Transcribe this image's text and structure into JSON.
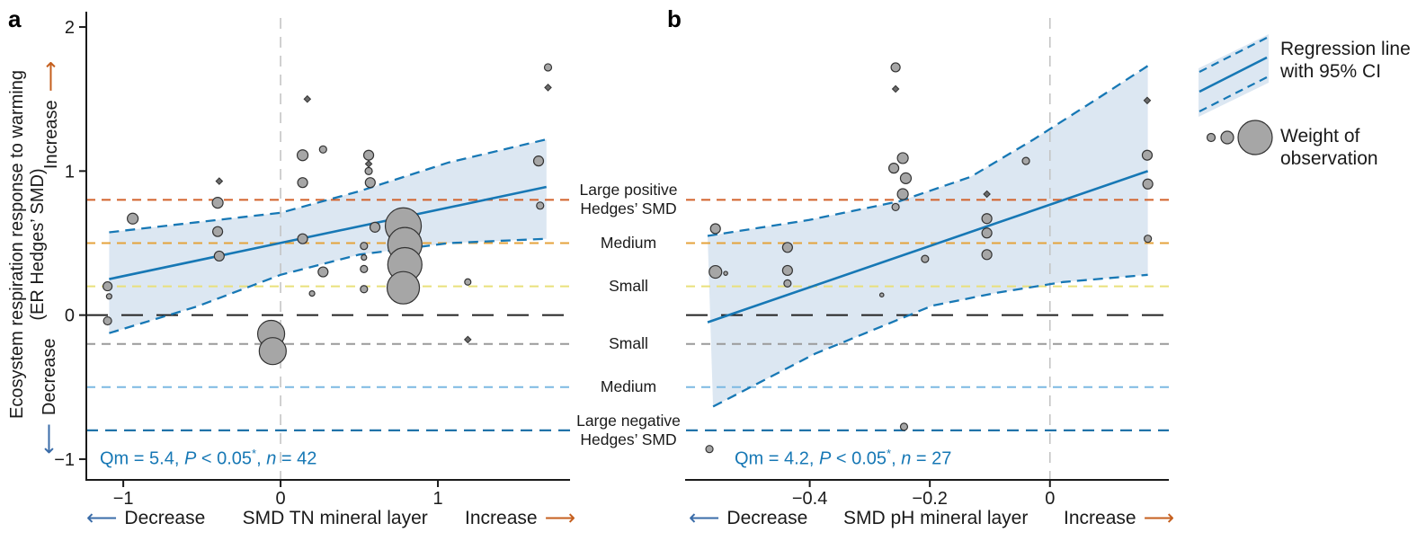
{
  "figure": {
    "panel_a_label": "a",
    "panel_b_label": "b",
    "y_axis_title_line1": "Ecosystem respiration response to warming",
    "y_axis_title_line2": "(ER Hedges’ SMD)",
    "y_increase_label": "Increase",
    "y_decrease_label": "Decrease",
    "icons": {
      "left_arrow": "⟵",
      "right_arrow": "⟶"
    },
    "legend": {
      "regression_line1": "Regression line",
      "regression_line2": "with 95% CI",
      "weight_line1": "Weight of",
      "weight_line2": "observation"
    }
  },
  "style": {
    "blue": "#1778b5",
    "ci_fill": "#dce7f2",
    "vline": "#c4c4c4",
    "axis": "#1a1a1a",
    "point_fill": "#a6a6a6",
    "stats_color": "#1778b5",
    "increase_arrow_color": "#c55f1e",
    "decrease_arrow_color": "#3a6ca8"
  },
  "chart_data": {
    "type": "scatter",
    "y_range": [
      -1.144,
      2.094
    ],
    "y_ticks": [
      {
        "v": 2,
        "label": "2"
      },
      {
        "v": 1,
        "label": "1"
      },
      {
        "v": 0,
        "label": "0"
      },
      {
        "v": -1,
        "label": "−1"
      }
    ],
    "ref_lines": [
      {
        "y": 0.8,
        "color": "#d2622b",
        "dash": "10 7",
        "width": 2,
        "label_lines": [
          "Large positive",
          "Hedges’ SMD"
        ]
      },
      {
        "y": 0.5,
        "color": "#e4a33c",
        "dash": "10 7",
        "width": 2,
        "label_lines": [
          "Medium"
        ]
      },
      {
        "y": 0.2,
        "color": "#e9e07b",
        "dash": "10 7",
        "width": 2,
        "label_lines": [
          "Small"
        ]
      },
      {
        "y": 0,
        "color": "#222222",
        "dash": "24 15",
        "width": 2,
        "label_lines": []
      },
      {
        "y": -0.2,
        "color": "#9a9a9a",
        "dash": "10 7",
        "width": 2,
        "label_lines": [
          "Small"
        ]
      },
      {
        "y": -0.5,
        "color": "#7cb9e2",
        "dash": "10 7",
        "width": 2,
        "label_lines": [
          "Medium"
        ]
      },
      {
        "y": -0.8,
        "color": "#2173a9",
        "dash": "13 8",
        "width": 2.3,
        "label_lines": [
          "Large negative",
          "Hedges’ SMD"
        ]
      }
    ],
    "panels": [
      {
        "id": "a",
        "x_label": "SMD TN mineral layer",
        "x_decrease": "Decrease",
        "x_increase": "Increase",
        "x_range": [
          -1.235,
          1.84
        ],
        "x_ticks": [
          {
            "v": -1,
            "label": "−1"
          },
          {
            "v": 0,
            "label": "0"
          },
          {
            "v": 1,
            "label": "1"
          }
        ],
        "stats": {
          "qm": "Qm = 5.4, ",
          "p": "P",
          "p2": " < 0.05",
          "star": "*",
          "sep": ", ",
          "n": "n",
          "n2": " = 42"
        },
        "regression": {
          "x1": -1.09,
          "y1": 0.25,
          "x2": 1.69,
          "y2": 0.89
        },
        "ci_upper": [
          [
            -1.09,
            0.575
          ],
          [
            -0.53,
            0.645
          ],
          [
            0,
            0.71
          ],
          [
            0.5,
            0.86
          ],
          [
            1.07,
            1.06
          ],
          [
            1.69,
            1.22
          ]
        ],
        "ci_lower": [
          [
            -1.09,
            -0.125
          ],
          [
            -0.53,
            0.06
          ],
          [
            0,
            0.28
          ],
          [
            0.5,
            0.42
          ],
          [
            1.07,
            0.5
          ],
          [
            1.69,
            0.53
          ]
        ],
        "points": [
          [
            -1.1,
            0.2,
            5
          ],
          [
            -1.09,
            0.13,
            3
          ],
          [
            -1.1,
            -0.04,
            4.5
          ],
          [
            -0.94,
            0.67,
            6
          ],
          [
            -0.4,
            0.78,
            6
          ],
          [
            -0.39,
            0.93,
            2.2,
            "d"
          ],
          [
            -0.4,
            0.58,
            5.5
          ],
          [
            -0.39,
            0.41,
            5.5
          ],
          [
            0.17,
            1.5,
            2.2,
            "d"
          ],
          [
            0.14,
            1.11,
            6
          ],
          [
            0.27,
            1.15,
            4
          ],
          [
            0.14,
            0.92,
            5.5
          ],
          [
            0.14,
            0.53,
            5.5
          ],
          [
            0.27,
            0.3,
            5.5
          ],
          [
            0.2,
            0.15,
            3
          ],
          [
            0.56,
            1.11,
            5.5
          ],
          [
            0.56,
            1.05,
            2.2,
            "d"
          ],
          [
            0.56,
            1.0,
            4
          ],
          [
            0.57,
            0.92,
            5.5
          ],
          [
            0.6,
            0.61,
            5.5
          ],
          [
            0.53,
            0.48,
            4
          ],
          [
            0.53,
            0.4,
            3
          ],
          [
            0.53,
            0.32,
            4
          ],
          [
            0.53,
            0.18,
            4
          ],
          [
            0.78,
            0.62,
            20
          ],
          [
            0.79,
            0.49,
            19
          ],
          [
            0.79,
            0.35,
            19
          ],
          [
            0.78,
            0.19,
            18
          ],
          [
            -0.06,
            -0.13,
            15
          ],
          [
            -0.05,
            -0.25,
            15
          ],
          [
            1.19,
            0.23,
            3.5
          ],
          [
            1.19,
            -0.17,
            2.2,
            "d"
          ],
          [
            1.64,
            1.07,
            5.5
          ],
          [
            1.65,
            0.76,
            4
          ],
          [
            1.7,
            1.72,
            4
          ],
          [
            1.7,
            1.58,
            2.2,
            "d"
          ]
        ]
      },
      {
        "id": "b",
        "x_label": "SMD pH mineral layer",
        "x_decrease": "Decrease",
        "x_increase": "Increase",
        "x_range": [
          -0.606,
          0.198
        ],
        "x_ticks": [
          {
            "v": -0.4,
            "label": "−0.4"
          },
          {
            "v": -0.2,
            "label": "−0.2"
          },
          {
            "v": 0,
            "label": "0"
          }
        ],
        "stats": {
          "qm": "Qm = 4.2, ",
          "p": "P",
          "p2": " < 0.05",
          "star": "*",
          "sep": ", ",
          "n": "n",
          "n2": " = 27"
        },
        "regression": {
          "x1": -0.57,
          "y1": -0.05,
          "x2": 0.163,
          "y2": 1.0
        },
        "ci_upper": [
          [
            -0.57,
            0.55
          ],
          [
            -0.401,
            0.66
          ],
          [
            -0.251,
            0.79
          ],
          [
            -0.132,
            0.96
          ],
          [
            -0.027,
            1.22
          ],
          [
            0.078,
            1.5
          ],
          [
            0.163,
            1.73
          ]
        ],
        "ci_lower": [
          [
            -0.561,
            -0.635
          ],
          [
            -0.391,
            -0.268
          ],
          [
            -0.196,
            0.065
          ],
          [
            -0.087,
            0.156
          ],
          [
            0.022,
            0.23
          ],
          [
            0.163,
            0.28
          ]
        ],
        "points": [
          [
            -0.557,
            0.6,
            5.5
          ],
          [
            -0.557,
            0.3,
            7
          ],
          [
            -0.54,
            0.29,
            2.2
          ],
          [
            -0.437,
            0.47,
            5.5
          ],
          [
            -0.437,
            0.31,
            5.5
          ],
          [
            -0.437,
            0.22,
            4
          ],
          [
            -0.28,
            0.14,
            2.2
          ],
          [
            -0.208,
            0.39,
            4
          ],
          [
            -0.243,
            -0.775,
            4
          ],
          [
            -0.567,
            -0.93,
            4
          ],
          [
            -0.257,
            1.72,
            5
          ],
          [
            -0.257,
            1.57,
            2.2,
            "d"
          ],
          [
            -0.245,
            1.09,
            6
          ],
          [
            -0.26,
            1.02,
            5.5
          ],
          [
            -0.24,
            0.95,
            6
          ],
          [
            -0.245,
            0.84,
            6
          ],
          [
            -0.257,
            0.75,
            4
          ],
          [
            -0.04,
            1.07,
            4
          ],
          [
            -0.105,
            0.84,
            2.2,
            "d"
          ],
          [
            -0.105,
            0.67,
            5.5
          ],
          [
            -0.105,
            0.57,
            5.5
          ],
          [
            -0.105,
            0.42,
            5.5
          ],
          [
            0.162,
            1.49,
            2.2,
            "d"
          ],
          [
            0.162,
            1.11,
            5.5
          ],
          [
            0.163,
            0.91,
            5.5
          ],
          [
            0.163,
            0.53,
            4
          ]
        ]
      }
    ]
  }
}
